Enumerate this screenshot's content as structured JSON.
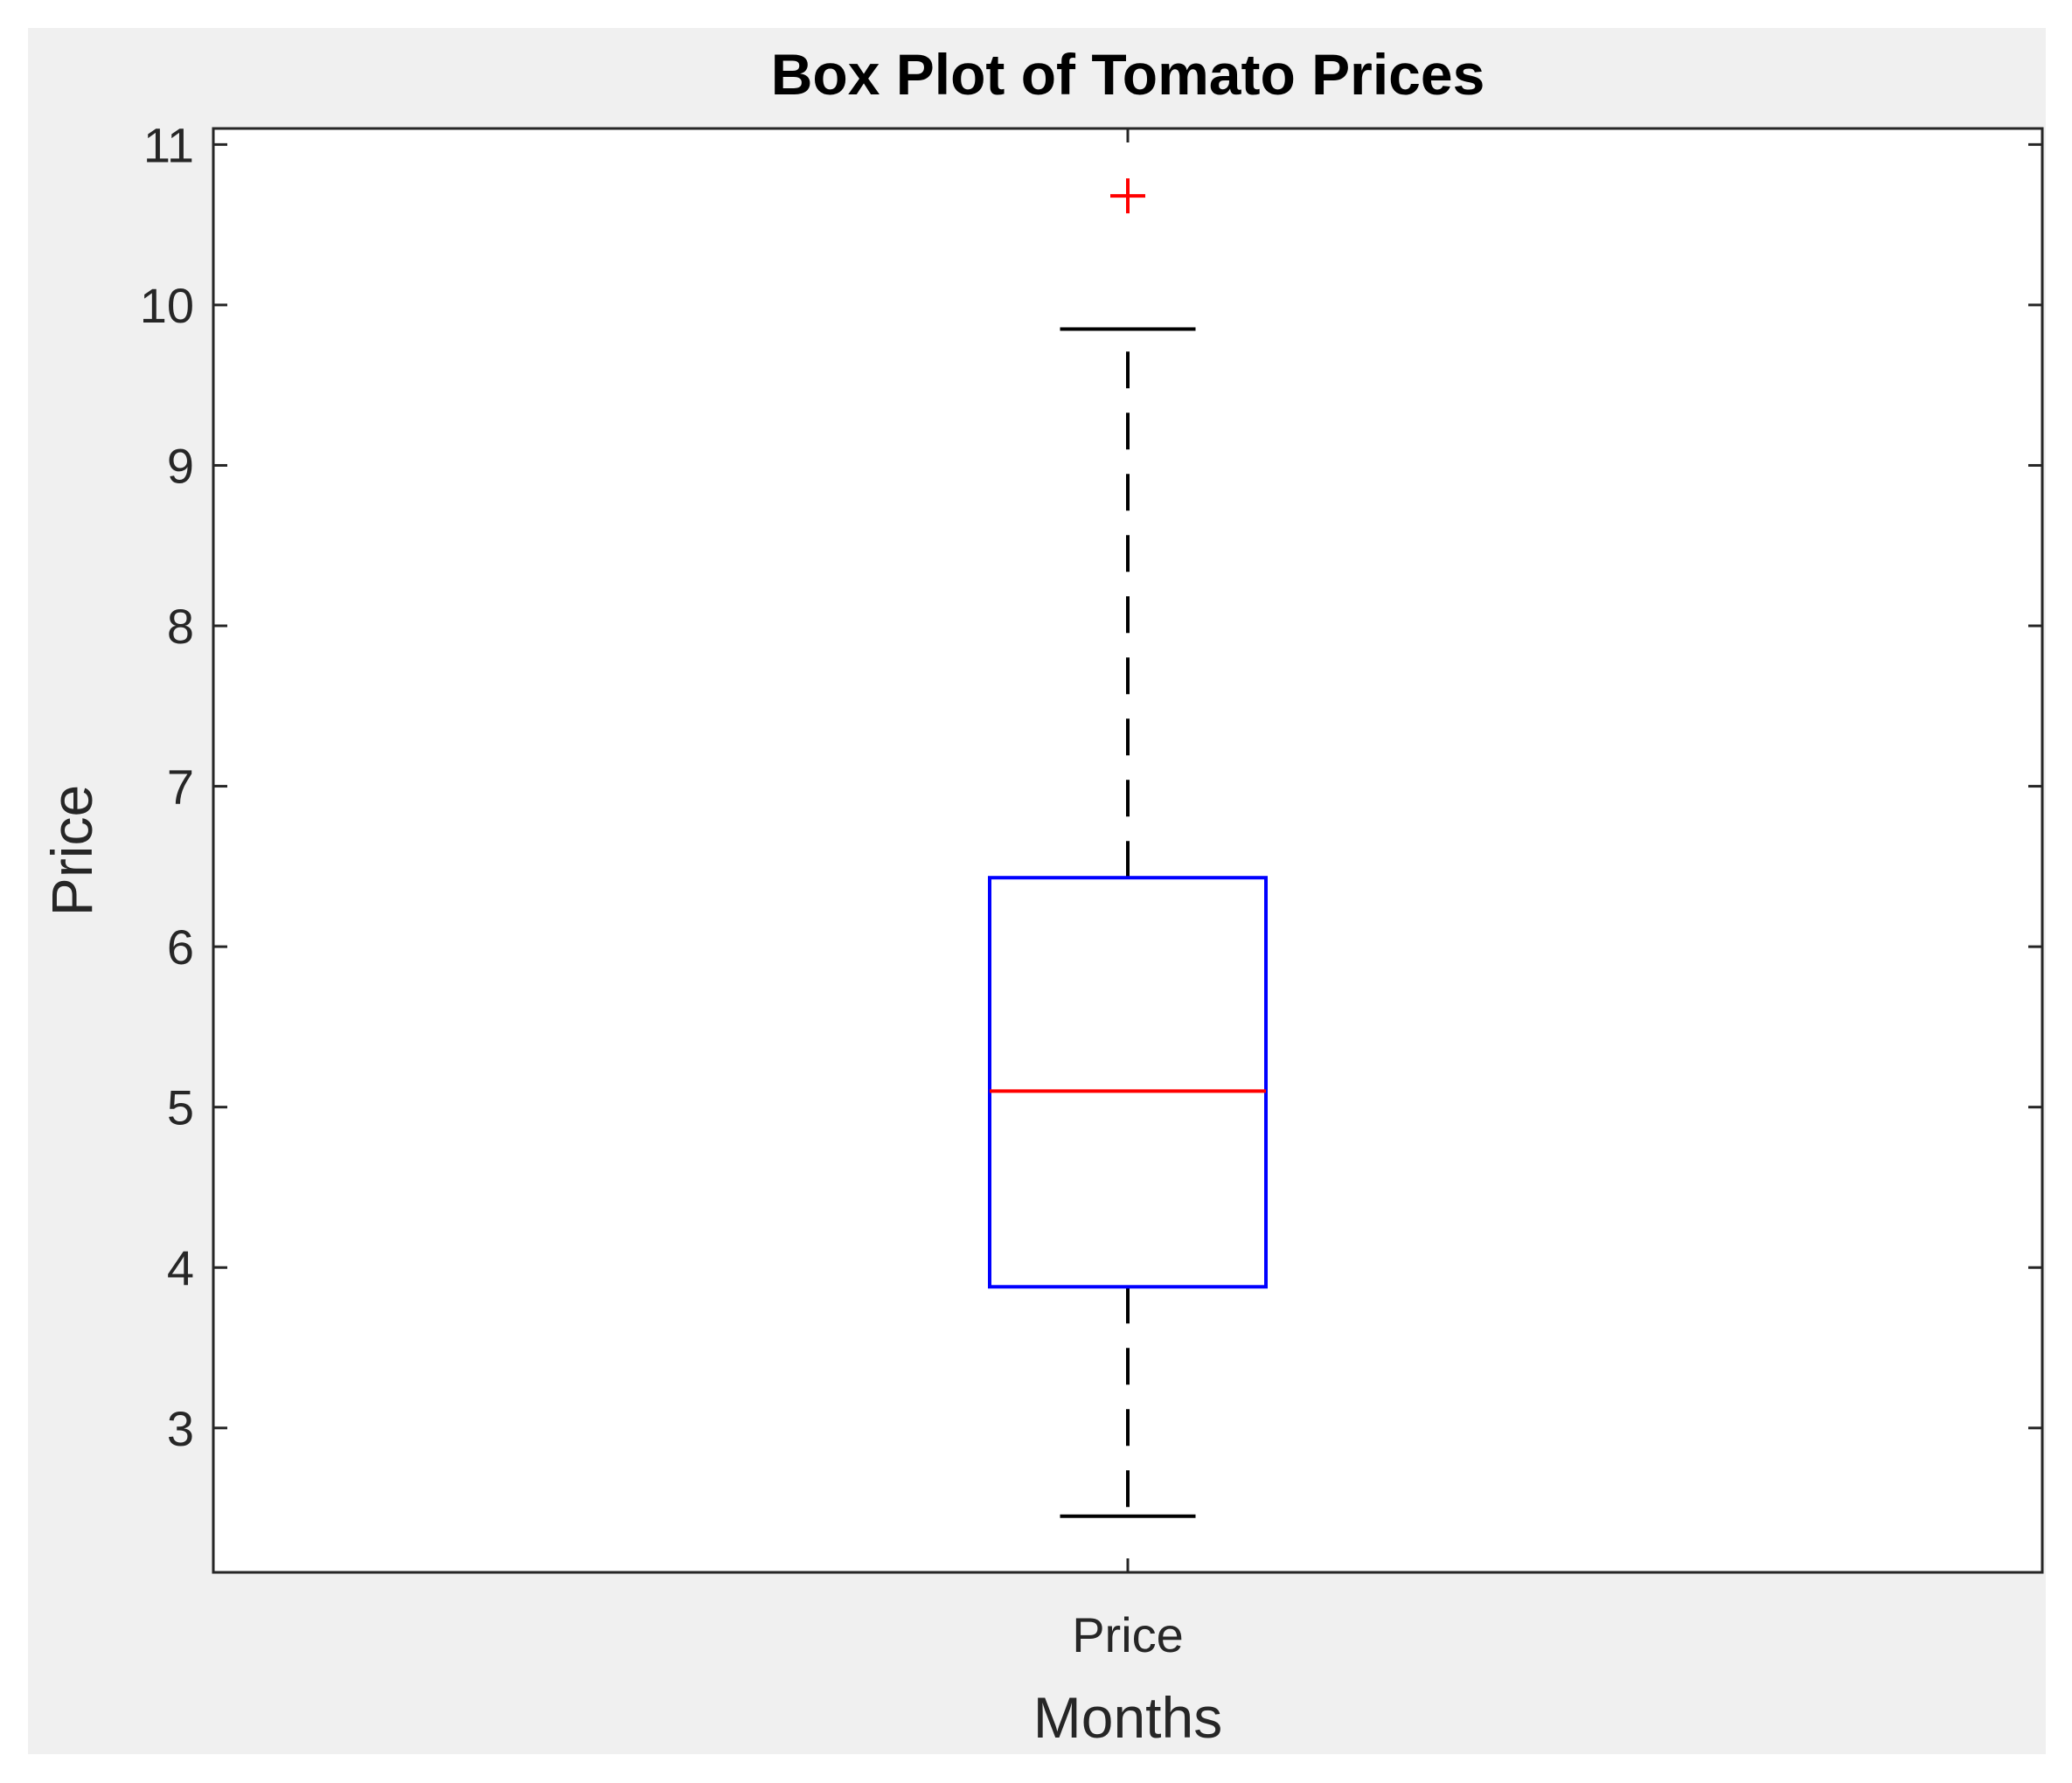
{
  "chart_data": {
    "type": "box",
    "title": "Box Plot of Tomato Prices",
    "xlabel": "Months",
    "ylabel": "Price",
    "categories": [
      "Price"
    ],
    "ylim": [
      2.1,
      11.1
    ],
    "yticks": [
      3,
      4,
      5,
      6,
      7,
      8,
      9,
      10,
      11
    ],
    "grid": false,
    "series": [
      {
        "category": "Price",
        "whisker_low": 2.45,
        "q1": 3.88,
        "median": 5.1,
        "q3": 6.43,
        "whisker_high": 9.85,
        "outliers": [
          10.68
        ]
      }
    ],
    "colors": {
      "box": "#0000ff",
      "median": "#ff0000",
      "whisker": "#000000",
      "outlier": "#ff0000",
      "figure_background": "#f0f0f0",
      "axes_background": "#ffffff",
      "axis": "#262626"
    }
  }
}
